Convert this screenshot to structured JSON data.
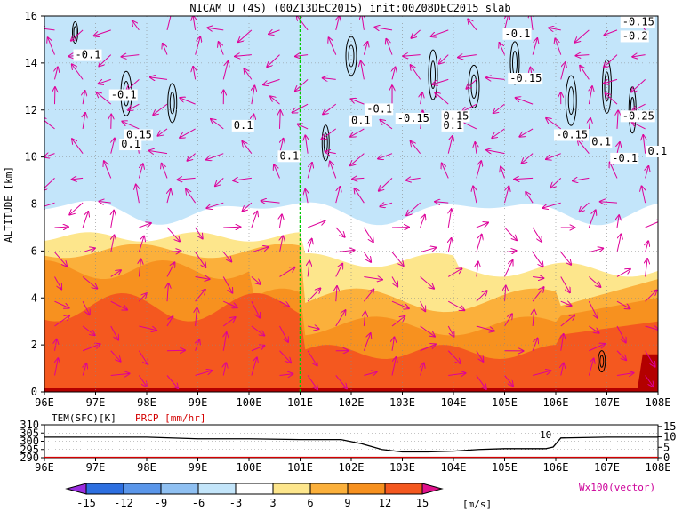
{
  "title": "NICAM U (4S) (00Z13DEC2015) init:00Z08DEC2015 slab",
  "colors": {
    "violet": "#9a2de0",
    "blue1": "#2d6fe0",
    "blue2": "#5a96ea",
    "blue3": "#8fc0f2",
    "blue4": "#c3e5fa",
    "yellow": "#fde68c",
    "orange1": "#fbb03b",
    "orange2": "#f7911f",
    "red1": "#f4581f",
    "darkred": "#b30000",
    "vector": "#dd0099",
    "contour": "#000000",
    "marker": "#00cc00"
  },
  "chart_data": [
    {
      "type": "heatmap",
      "title": "NICAM U (4S) (00Z13DEC2015) init:00Z08DEC2015 slab",
      "ylabel": "ALTITUDE [km]",
      "xlim": [
        96,
        108
      ],
      "ylim": [
        0,
        16
      ],
      "x_ticks": [
        "96E",
        "97E",
        "98E",
        "99E",
        "100E",
        "101E",
        "102E",
        "103E",
        "104E",
        "105E",
        "106E",
        "107E",
        "108E"
      ],
      "y_ticks": [
        "0",
        "2",
        "4",
        "6",
        "8",
        "10",
        "12",
        "14",
        "16"
      ],
      "grid": true,
      "vertical_marker_lon": 101,
      "color_levels": [
        -15,
        -12,
        -9,
        -6,
        -3,
        3,
        6,
        9,
        12,
        15
      ],
      "colorbar_labels": [
        "-15",
        "-12",
        "-9",
        "-6",
        "-3",
        "3",
        "6",
        "9",
        "12",
        "15"
      ],
      "colorbar_unit": "[m/s]",
      "vector_note": "Wx100(vector)",
      "contour_labels": [
        {
          "text": "-0.1",
          "lon": 96.6,
          "alt": 14.2
        },
        {
          "text": "-0.1",
          "lon": 97.3,
          "alt": 12.5
        },
        {
          "text": "0.15",
          "lon": 97.6,
          "alt": 10.8
        },
        {
          "text": "0.1",
          "lon": 97.5,
          "alt": 10.4
        },
        {
          "text": "0.1",
          "lon": 99.7,
          "alt": 11.2
        },
        {
          "text": "0.1",
          "lon": 100.6,
          "alt": 9.9
        },
        {
          "text": "-0.1",
          "lon": 102.3,
          "alt": 11.9
        },
        {
          "text": "0.1",
          "lon": 102.0,
          "alt": 11.4
        },
        {
          "text": "-0.15",
          "lon": 102.9,
          "alt": 11.5
        },
        {
          "text": "0.15",
          "lon": 103.8,
          "alt": 11.6
        },
        {
          "text": "0.1",
          "lon": 103.8,
          "alt": 11.2
        },
        {
          "text": "-0.1",
          "lon": 105.0,
          "alt": 15.1
        },
        {
          "text": "-0.15",
          "lon": 105.1,
          "alt": 13.2
        },
        {
          "text": "-0.15",
          "lon": 106.0,
          "alt": 10.8
        },
        {
          "text": "0.1",
          "lon": 106.7,
          "alt": 10.5
        },
        {
          "text": "-0.15",
          "lon": 107.3,
          "alt": 15.6
        },
        {
          "text": "-0.2",
          "lon": 107.3,
          "alt": 15.0
        },
        {
          "text": "-0.25",
          "lon": 107.3,
          "alt": 11.6
        },
        {
          "text": "-0.1",
          "lon": 107.1,
          "alt": 9.8
        },
        {
          "text": "0.1",
          "lon": 107.8,
          "alt": 10.1
        }
      ]
    },
    {
      "type": "line",
      "series": [
        {
          "name": "TEM(SFC)[K]",
          "x": [
            96,
            97,
            98,
            99,
            100,
            101,
            101.8,
            102.2,
            102.6,
            103,
            103.5,
            104,
            104.5,
            105,
            105.5,
            105.8,
            105.95,
            106.1,
            107,
            108
          ],
          "values": [
            302.5,
            302.5,
            302.5,
            301.5,
            301.5,
            301.0,
            301.0,
            298.5,
            295.0,
            293.5,
            293.5,
            294.0,
            295.0,
            295.5,
            295.5,
            295.5,
            296.5,
            302.0,
            302.5,
            302.5
          ]
        },
        {
          "name": "PRCP [mm/hr]",
          "x": [
            96,
            108
          ],
          "values": [
            0,
            0
          ]
        }
      ],
      "xlim": [
        96,
        108
      ],
      "ylim": [
        290,
        310
      ],
      "y_ticks_left": [
        "290",
        "295",
        "300",
        "305",
        "310"
      ],
      "y_ticks_right": [
        "0",
        "5",
        "10",
        "15"
      ],
      "annotation": "10"
    }
  ]
}
